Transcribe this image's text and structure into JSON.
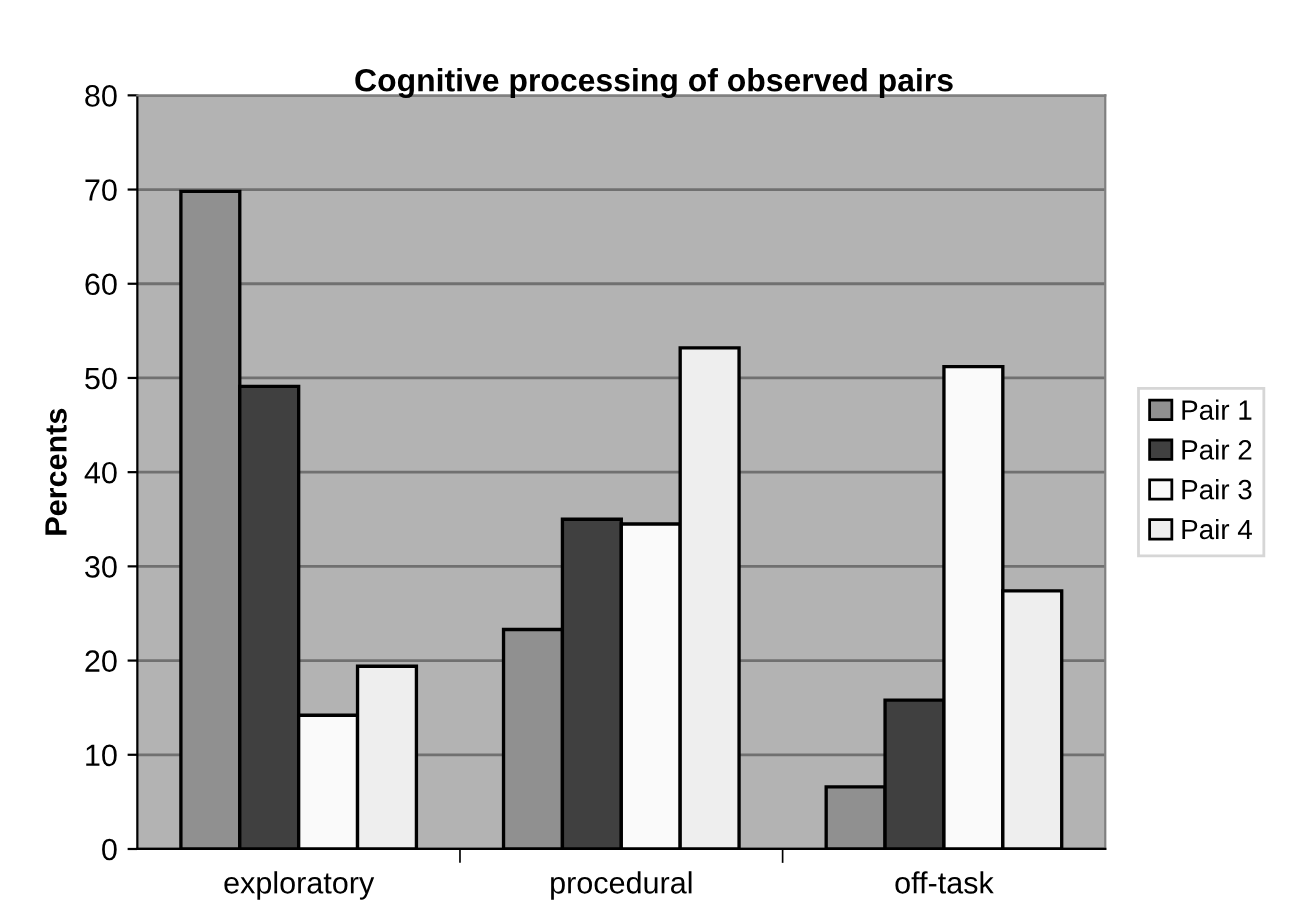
{
  "chart_data": {
    "type": "bar",
    "title": "Cognitive processing of observed pairs",
    "ylabel": "Percents",
    "categories": [
      "exploratory",
      "procedural",
      "off-task"
    ],
    "series": [
      {
        "name": "Pair 1",
        "color": "#909090",
        "values": [
          69.8,
          23.3,
          6.6
        ]
      },
      {
        "name": "Pair 2",
        "color": "#404040",
        "values": [
          49.1,
          35.0,
          15.8
        ]
      },
      {
        "name": "Pair 3",
        "color": "#fafafa",
        "values": [
          14.2,
          34.5,
          51.2
        ]
      },
      {
        "name": "Pair 4",
        "color": "#eeeeee",
        "values": [
          19.4,
          53.2,
          27.4
        ]
      }
    ],
    "ylim": [
      0,
      80
    ],
    "yticks": [
      0,
      10,
      20,
      30,
      40,
      50,
      60,
      70,
      80
    ],
    "grid": "y",
    "legend": "right"
  }
}
